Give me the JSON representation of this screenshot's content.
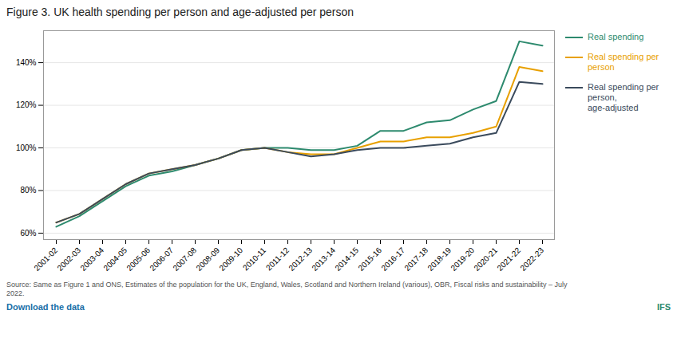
{
  "chart_data": {
    "type": "line",
    "title": "Figure 3. UK health spending per person and age-adjusted per person",
    "caption": "Source: Same as Figure 1 and ONS, Estimates of the population for the UK, England, Wales, Scotland and Northern Ireland (various), OBR, Fiscal risks and sustainability – July\n2022.",
    "annotations": [
      "Download the data",
      "IFS"
    ],
    "categories": [
      "2001-02",
      "2002-03",
      "2003-04",
      "2004-05",
      "2005-06",
      "2006-07",
      "2007-08",
      "2008-09",
      "2009-10",
      "2010-11",
      "2011-12",
      "2012-13",
      "2013-14",
      "2014-15",
      "2015-16",
      "2016-17",
      "2017-18",
      "2018-19",
      "2019-20",
      "2020-21",
      "2021-22",
      "2022-23"
    ],
    "series": [
      {
        "name": "Real spending",
        "color": "#2d8a6e",
        "values": [
          63,
          68,
          75,
          82,
          87,
          89,
          92,
          95,
          99,
          100,
          100,
          99,
          99,
          101,
          108,
          108,
          112,
          113,
          118,
          122,
          150,
          148
        ]
      },
      {
        "name": "Real spending per\nperson",
        "color": "#e8a000",
        "values": [
          65,
          69,
          76,
          83,
          88,
          90,
          92,
          95,
          99,
          100,
          98,
          97,
          97,
          100,
          103,
          103,
          105,
          105,
          107,
          110,
          138,
          136
        ]
      },
      {
        "name": "Real spending per\nperson,\nage-adjusted",
        "color": "#3a4a5c",
        "values": [
          65,
          69,
          76,
          83,
          88,
          90,
          92,
          95,
          99,
          100,
          98,
          96,
          97,
          99,
          100,
          100,
          101,
          102,
          105,
          107,
          131,
          130
        ]
      }
    ],
    "ylim": [
      57,
      155
    ],
    "yticks": [
      {
        "value": 60,
        "label": "60%"
      },
      {
        "value": 80,
        "label": "80%"
      },
      {
        "value": 100,
        "label": "100%"
      },
      {
        "value": 120,
        "label": "120%"
      },
      {
        "value": 140,
        "label": "140%"
      }
    ],
    "grid": true,
    "legend": "right"
  }
}
